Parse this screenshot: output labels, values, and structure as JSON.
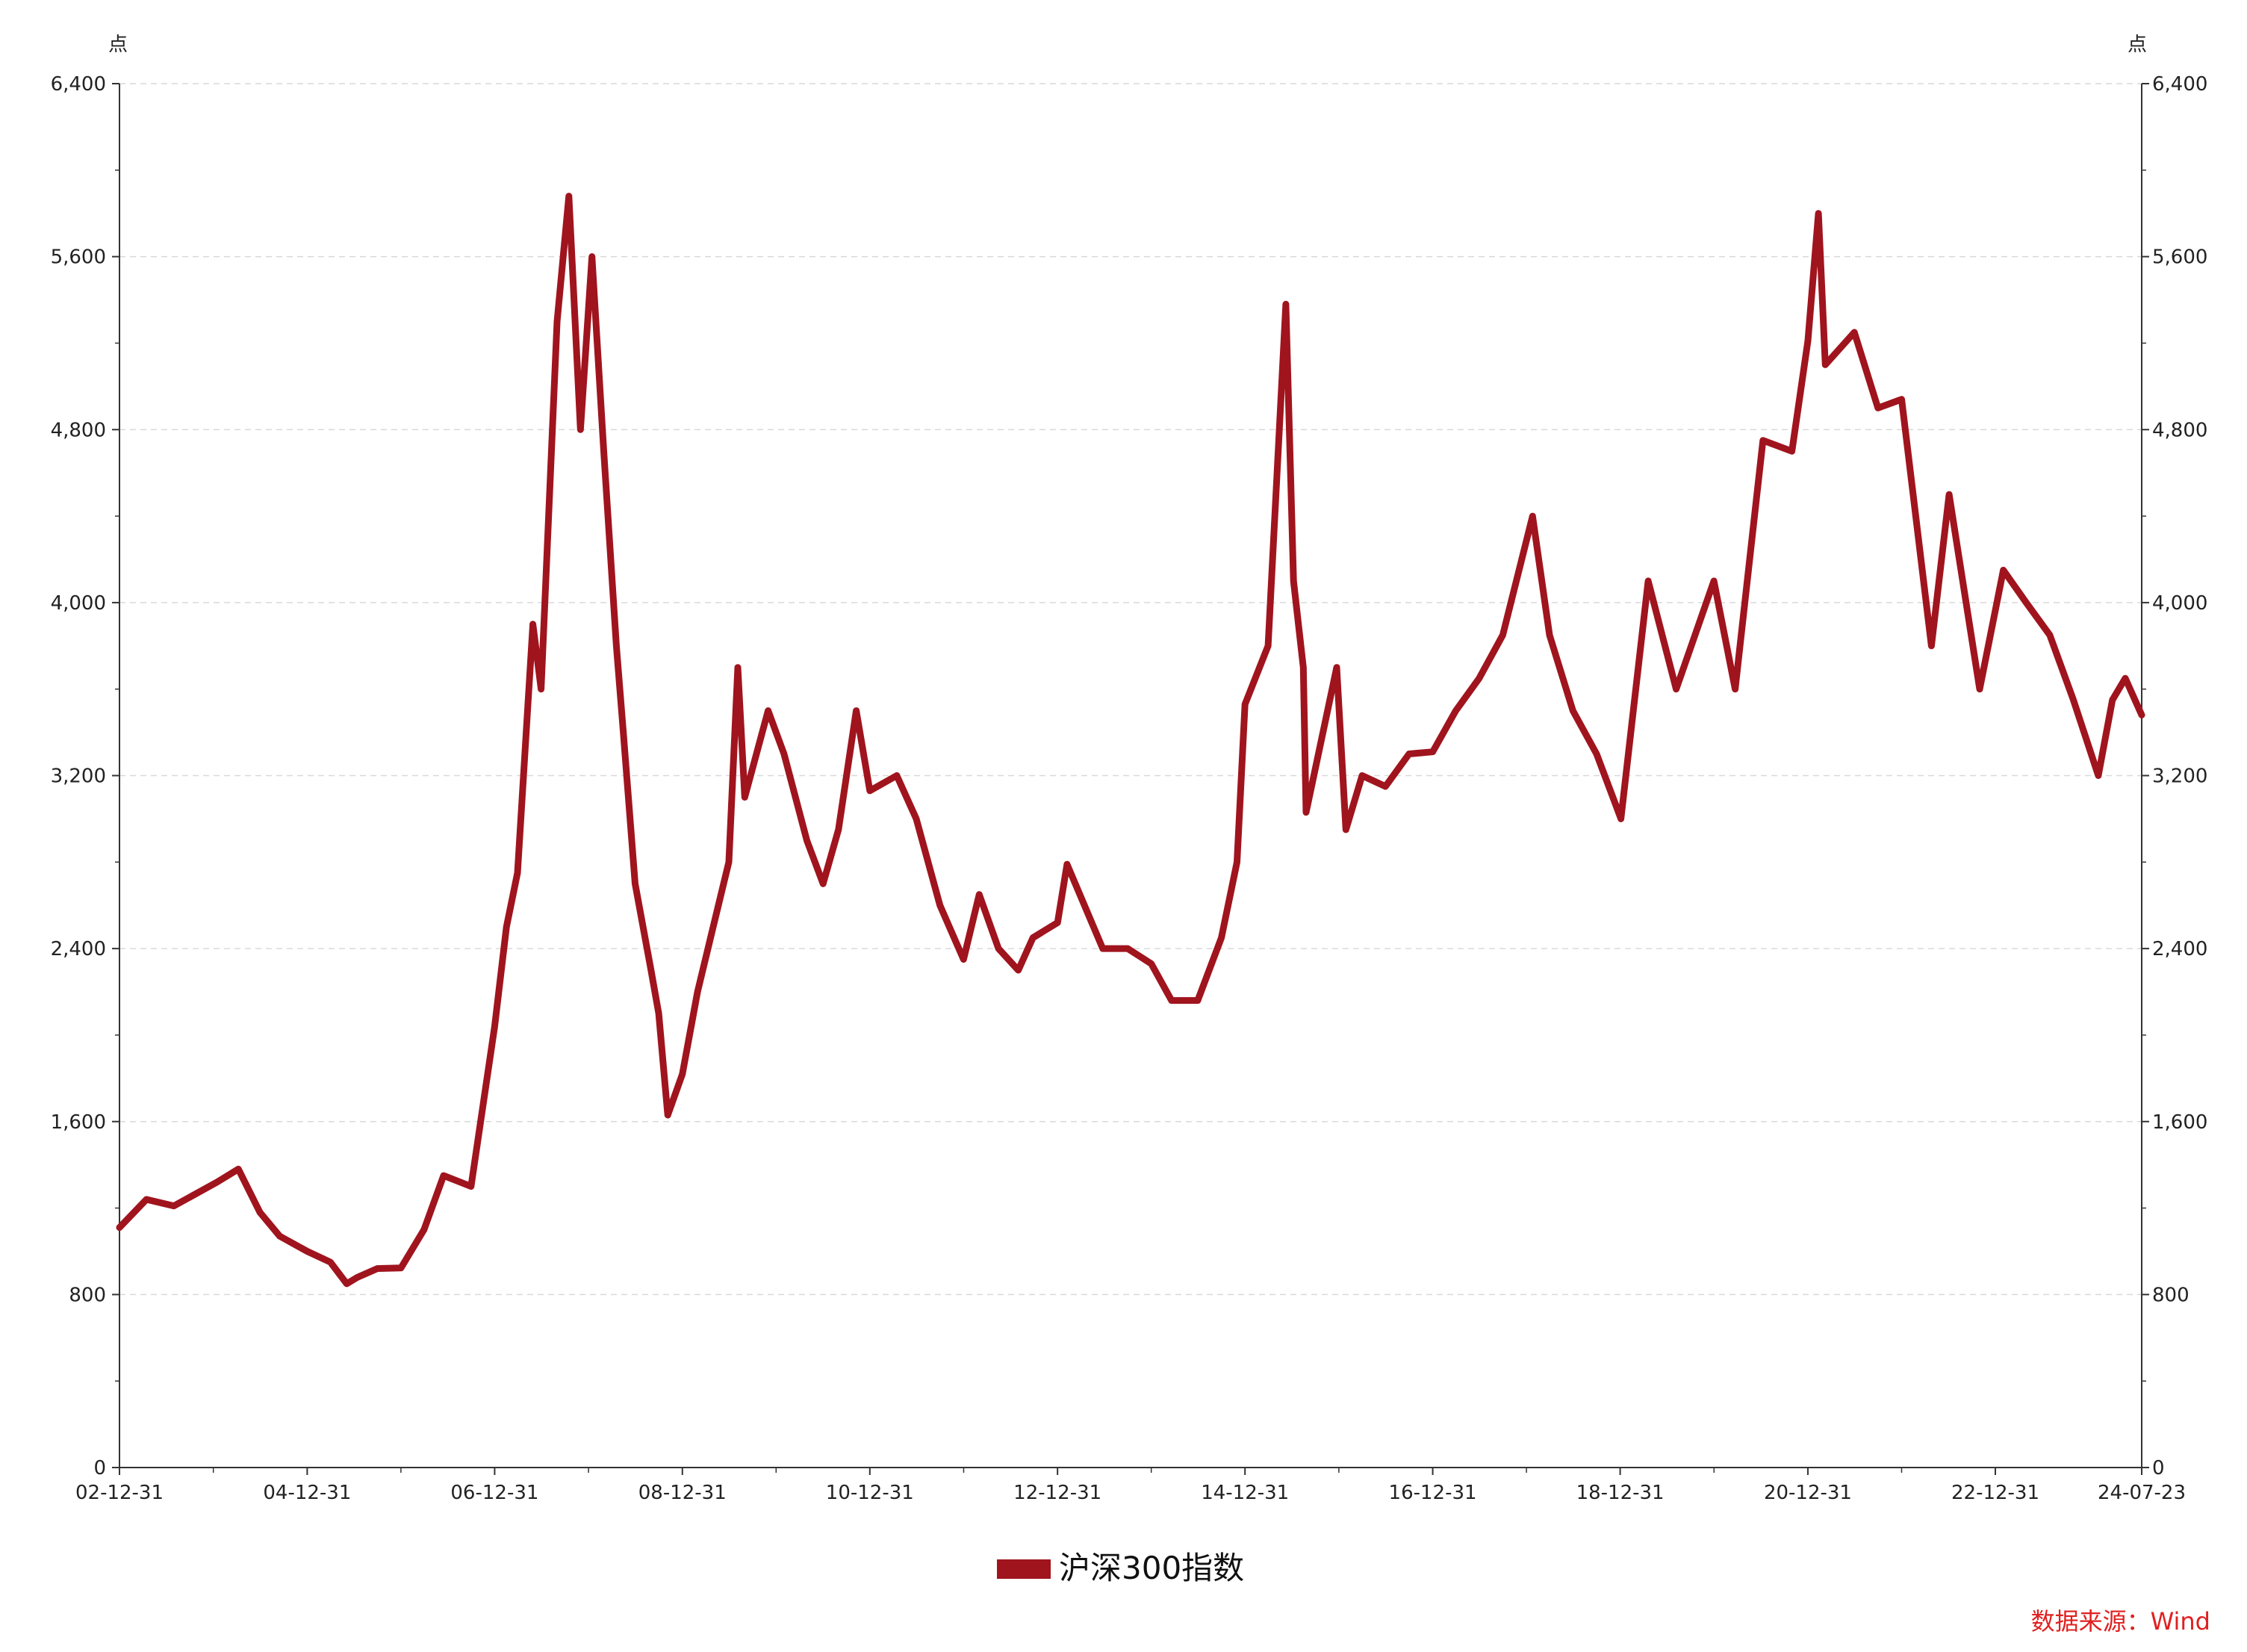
{
  "chart_data": {
    "type": "line",
    "title": "",
    "xlabel": "",
    "ylabel": "点",
    "ylabel_right": "点",
    "ylim": [
      0,
      6400
    ],
    "yticks": [
      0,
      800,
      1600,
      2400,
      3200,
      4000,
      4800,
      5600,
      6400
    ],
    "ytick_labels": [
      "0",
      "800",
      "1,600",
      "2,400",
      "3,200",
      "4,000",
      "4,800",
      "5,600",
      "6,400"
    ],
    "xlim": [
      "2002-12-31",
      "2024-07-23"
    ],
    "xticks": [
      "2002-12-31",
      "2004-12-31",
      "2006-12-31",
      "2008-12-31",
      "2010-12-31",
      "2012-12-31",
      "2014-12-31",
      "2016-12-31",
      "2018-12-31",
      "2020-12-31",
      "2022-12-31",
      "2024-07-23"
    ],
    "xtick_labels": [
      "02-12-31",
      "04-12-31",
      "06-12-31",
      "08-12-31",
      "10-12-31",
      "12-12-31",
      "14-12-31",
      "16-12-31",
      "18-12-31",
      "20-12-31",
      "22-12-31",
      "24-07-23"
    ],
    "grid": true,
    "legend_position": "bottom-center",
    "series": [
      {
        "name": "沪深300指数",
        "color": "#A0141E",
        "x": [
          "2002-12-31",
          "2003-04-15",
          "2003-07-31",
          "2004-01-15",
          "2004-04-07",
          "2004-06-30",
          "2004-09-15",
          "2004-12-31",
          "2005-03-31",
          "2005-06-03",
          "2005-07-15",
          "2005-09-30",
          "2005-12-31",
          "2006-03-31",
          "2006-06-15",
          "2006-09-30",
          "2006-12-31",
          "2007-02-15",
          "2007-03-30",
          "2007-05-29",
          "2007-06-30",
          "2007-08-31",
          "2007-10-16",
          "2007-11-30",
          "2008-01-14",
          "2008-02-29",
          "2008-04-18",
          "2008-05-15",
          "2008-06-30",
          "2008-08-31",
          "2008-09-30",
          "2008-11-04",
          "2008-12-31",
          "2009-02-28",
          "2009-04-30",
          "2009-06-30",
          "2009-08-04",
          "2009-08-31",
          "2009-11-30",
          "2010-01-31",
          "2010-04-30",
          "2010-07-02",
          "2010-08-31",
          "2010-11-08",
          "2010-12-31",
          "2011-04-15",
          "2011-06-30",
          "2011-09-30",
          "2011-12-31",
          "2012-03-01",
          "2012-05-15",
          "2012-07-31",
          "2012-09-26",
          "2012-12-31",
          "2013-02-06",
          "2013-06-25",
          "2013-09-30",
          "2013-12-31",
          "2014-03-20",
          "2014-06-30",
          "2014-09-30",
          "2014-11-30",
          "2014-12-31",
          "2015-03-31",
          "2015-06-08",
          "2015-07-08",
          "2015-08-15",
          "2015-08-26",
          "2015-12-23",
          "2016-01-28",
          "2016-03-31",
          "2016-06-30",
          "2016-09-30",
          "2016-12-31",
          "2017-03-31",
          "2017-06-30",
          "2017-09-30",
          "2018-01-24",
          "2018-03-31",
          "2018-06-30",
          "2018-09-30",
          "2018-12-31",
          "2019-01-03",
          "2019-04-19",
          "2019-08-06",
          "2019-12-31",
          "2020-03-23",
          "2020-07-09",
          "2020-10-30",
          "2020-12-31",
          "2021-02-10",
          "2021-03-09",
          "2021-06-30",
          "2021-09-30",
          "2021-12-31",
          "2022-04-26",
          "2022-07-04",
          "2022-10-31",
          "2023-01-31",
          "2023-04-30",
          "2023-07-31",
          "2023-10-31",
          "2024-02-05",
          "2024-03-31",
          "2024-05-20",
          "2024-07-23"
        ],
        "values": [
          1110,
          1240,
          1210,
          1320,
          1380,
          1180,
          1070,
          1000,
          950,
          850,
          880,
          920,
          923,
          1100,
          1350,
          1300,
          2040,
          2500,
          2750,
          3900,
          3600,
          5300,
          5880,
          4800,
          5600,
          4700,
          3800,
          3400,
          2700,
          2300,
          2100,
          1630,
          1820,
          2200,
          2500,
          2800,
          3700,
          3100,
          3500,
          3300,
          2900,
          2700,
          2950,
          3500,
          3130,
          3200,
          3000,
          2600,
          2350,
          2650,
          2400,
          2300,
          2450,
          2520,
          2790,
          2400,
          2400,
          2330,
          2160,
          2160,
          2450,
          2800,
          3530,
          3800,
          5380,
          4100,
          3700,
          3030,
          3700,
          2950,
          3200,
          3150,
          3300,
          3310,
          3500,
          3650,
          3850,
          4400,
          3850,
          3500,
          3300,
          3010,
          3000,
          4100,
          3600,
          4100,
          3600,
          4750,
          4700,
          5211,
          5800,
          5100,
          5250,
          4900,
          4940,
          3800,
          4500,
          3600,
          4150,
          4000,
          3850,
          3550,
          3200,
          3550,
          3650,
          3480
        ]
      }
    ]
  },
  "legend": {
    "label": "沪深300指数",
    "color": "#A0141E"
  },
  "source": {
    "text": "数据来源：Wind",
    "color": "#E02020"
  }
}
